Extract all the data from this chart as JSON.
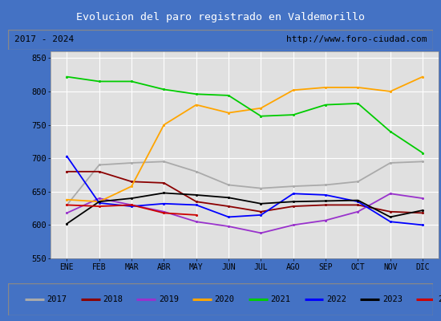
{
  "title": "Evolucion del paro registrado en Valdemorillo",
  "subtitle_left": "2017 - 2024",
  "subtitle_right": "http://www.foro-ciudad.com",
  "months": [
    "ENE",
    "FEB",
    "MAR",
    "ABR",
    "MAY",
    "JUN",
    "JUL",
    "AGO",
    "SEP",
    "OCT",
    "NOV",
    "DIC"
  ],
  "ylim": [
    550,
    860
  ],
  "yticks": [
    550,
    600,
    650,
    700,
    750,
    800,
    850
  ],
  "series": {
    "2017": {
      "color": "#aaaaaa",
      "data": [
        630,
        690,
        693,
        695,
        680,
        660,
        655,
        658,
        660,
        665,
        693,
        695
      ]
    },
    "2018": {
      "color": "#8b0000",
      "data": [
        680,
        680,
        665,
        663,
        635,
        628,
        620,
        628,
        630,
        630,
        620,
        618
      ]
    },
    "2019": {
      "color": "#9932cc",
      "data": [
        618,
        640,
        630,
        620,
        605,
        598,
        588,
        600,
        607,
        620,
        647,
        640
      ]
    },
    "2020": {
      "color": "#ffa500",
      "data": [
        638,
        635,
        658,
        750,
        780,
        768,
        775,
        802,
        806,
        806,
        800,
        822
      ]
    },
    "2021": {
      "color": "#00cc00",
      "data": [
        822,
        815,
        815,
        803,
        796,
        794,
        763,
        765,
        780,
        782,
        740,
        708
      ]
    },
    "2022": {
      "color": "#0000ff",
      "data": [
        703,
        633,
        628,
        632,
        630,
        612,
        615,
        647,
        645,
        635,
        605,
        600
      ]
    },
    "2023": {
      "color": "#000000",
      "data": [
        602,
        635,
        640,
        648,
        645,
        641,
        632,
        635,
        636,
        637,
        612,
        622
      ]
    },
    "2024": {
      "color": "#cc0000",
      "data": [
        630,
        628,
        630,
        618,
        615,
        null,
        null,
        null,
        null,
        null,
        null,
        null
      ]
    }
  },
  "title_bg_color": "#4472c4",
  "title_font_color": "#ffffff",
  "subtitle_bg_color": "#d8d8d8",
  "plot_bg_color": "#e0e0e0",
  "grid_color": "#ffffff",
  "border_color": "#4472c4",
  "outer_bg": "#c8c8c8"
}
